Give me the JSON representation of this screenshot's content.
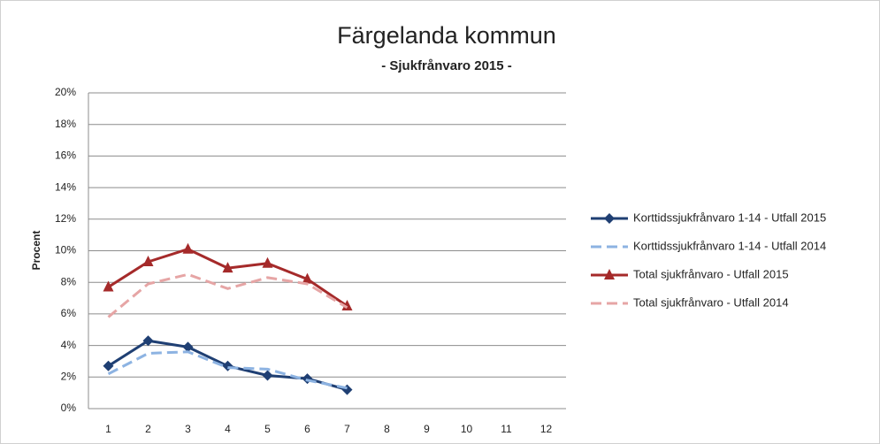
{
  "chart_data": {
    "type": "line",
    "title": "Färgelanda kommun",
    "subtitle": "- Sjukfrånvaro 2015 -",
    "y_label": "Procent",
    "categories": [
      "1",
      "2",
      "3",
      "4",
      "5",
      "6",
      "7",
      "8",
      "9",
      "10",
      "11",
      "12"
    ],
    "series": [
      {
        "name": "Korttidssjukfrånvaro 1-14 - Utfall 2015",
        "color": "#1f3f73",
        "dash": false,
        "marker": "diamond",
        "values": [
          2.7,
          4.3,
          3.9,
          2.7,
          2.1,
          1.9,
          1.2,
          null,
          null,
          null,
          null,
          null
        ]
      },
      {
        "name": "Korttidssjukfrånvaro 1-14 - Utfall 2014",
        "color": "#8db3e2",
        "dash": true,
        "marker": "none",
        "values": [
          2.2,
          3.5,
          3.6,
          2.6,
          2.5,
          1.8,
          1.3,
          null,
          null,
          null,
          null,
          null
        ]
      },
      {
        "name": "Total sjukfrånvaro - Utfall 2015",
        "color": "#a52a2a",
        "dash": false,
        "marker": "triangle",
        "values": [
          7.7,
          9.3,
          10.1,
          8.9,
          9.2,
          8.2,
          6.5,
          null,
          null,
          null,
          null,
          null
        ]
      },
      {
        "name": "Total sjukfrånvaro - Utfall 2014",
        "color": "#e6a5a5",
        "dash": true,
        "marker": "none",
        "values": [
          5.8,
          7.9,
          8.5,
          7.6,
          8.3,
          7.9,
          6.4,
          null,
          null,
          null,
          null,
          null
        ]
      }
    ],
    "ylim": [
      0,
      20
    ],
    "yticks": [
      {
        "value": 0,
        "label": "0%"
      },
      {
        "value": 2,
        "label": "2%"
      },
      {
        "value": 4,
        "label": "4%"
      },
      {
        "value": 6,
        "label": "6%"
      },
      {
        "value": 8,
        "label": "8%"
      },
      {
        "value": 10,
        "label": "10%"
      },
      {
        "value": 12,
        "label": "12%"
      },
      {
        "value": 14,
        "label": "14%"
      },
      {
        "value": 16,
        "label": "16%"
      },
      {
        "value": 18,
        "label": "18%"
      },
      {
        "value": 20,
        "label": "20%"
      }
    ],
    "grid": true,
    "legend": "right"
  }
}
